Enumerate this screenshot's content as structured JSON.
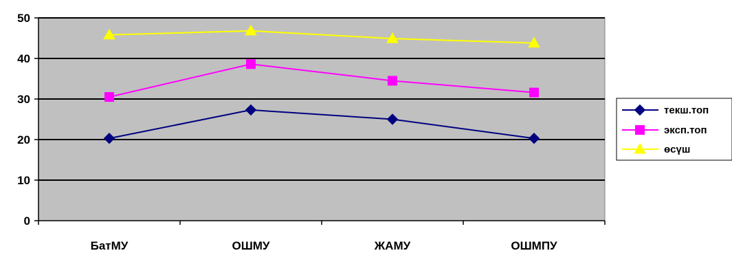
{
  "chart_data": {
    "type": "line",
    "categories": [
      "БатМУ",
      "ОШМУ",
      "ЖАМУ",
      "ОШМПУ"
    ],
    "ylim": [
      0,
      50
    ],
    "yticks": [
      0,
      10,
      20,
      30,
      40,
      50
    ],
    "grid": true,
    "legend_position": "right",
    "plot_background": "#c0c0c0",
    "series": [
      {
        "name": "текш.топ",
        "values": [
          20.3,
          27.3,
          25,
          20.3
        ],
        "color": "#000080",
        "marker": "diamond"
      },
      {
        "name": "эксп.топ",
        "values": [
          30.5,
          38.6,
          34.5,
          31.6
        ],
        "color": "#ff00ff",
        "marker": "square"
      },
      {
        "name": "өсүш",
        "values": [
          45.8,
          46.8,
          44.9,
          43.8
        ],
        "color": "#ffff00",
        "marker": "triangle"
      }
    ]
  }
}
